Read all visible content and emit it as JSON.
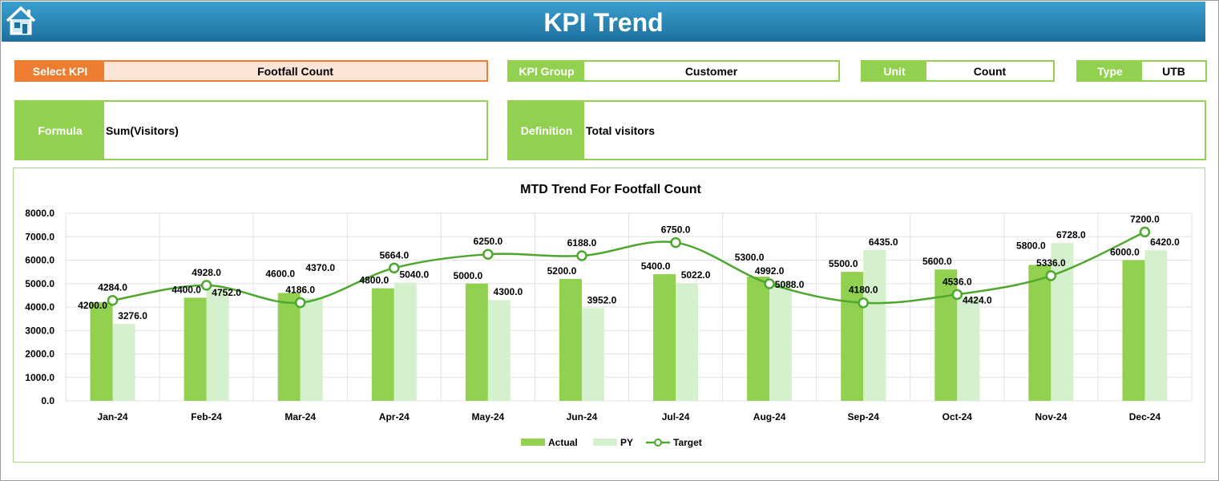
{
  "header": {
    "title": "KPI Trend",
    "home_icon": "home-icon"
  },
  "fields": {
    "select_kpi": {
      "label": "Select KPI",
      "value": "Footfall Count"
    },
    "kpi_group": {
      "label": "KPI Group",
      "value": "Customer"
    },
    "unit": {
      "label": "Unit",
      "value": "Count"
    },
    "type": {
      "label": "Type",
      "value": "UTB"
    },
    "formula": {
      "label": "Formula",
      "value": "Sum(Visitors)"
    },
    "definition": {
      "label": "Definition",
      "value": "Total visitors"
    }
  },
  "colors": {
    "accent_orange": "#ED7D31",
    "green": "#92D050",
    "py": "#D5F0CC",
    "target": "#4EA72E",
    "header_blue": "#2A86B8"
  },
  "chart_data": {
    "type": "bar",
    "title": "MTD Trend For Footfall Count",
    "categories": [
      "Jan-24",
      "Feb-24",
      "Mar-24",
      "Apr-24",
      "May-24",
      "Jun-24",
      "Jul-24",
      "Aug-24",
      "Sep-24",
      "Oct-24",
      "Nov-24",
      "Dec-24"
    ],
    "ylim": [
      0,
      8000
    ],
    "yticks": [
      "0.0",
      "1000.0",
      "2000.0",
      "3000.0",
      "4000.0",
      "5000.0",
      "6000.0",
      "7000.0",
      "8000.0"
    ],
    "grid": true,
    "legend_position": "bottom",
    "series": [
      {
        "name": "Actual",
        "kind": "bar",
        "values": [
          4200,
          4400,
          4600,
          4800,
          5000,
          5200,
          5400,
          5300,
          5500,
          5600,
          5800,
          6000
        ]
      },
      {
        "name": "PY",
        "kind": "bar",
        "values": [
          3276,
          4752,
          4370,
          5040,
          4300,
          3952,
          5022,
          5088,
          6435,
          4424,
          6728,
          6420
        ]
      },
      {
        "name": "Target",
        "kind": "line",
        "values": [
          4284,
          4928,
          4186,
          5664,
          6250,
          6188,
          6750,
          4992,
          4180,
          4536,
          5336,
          7200
        ]
      }
    ]
  }
}
